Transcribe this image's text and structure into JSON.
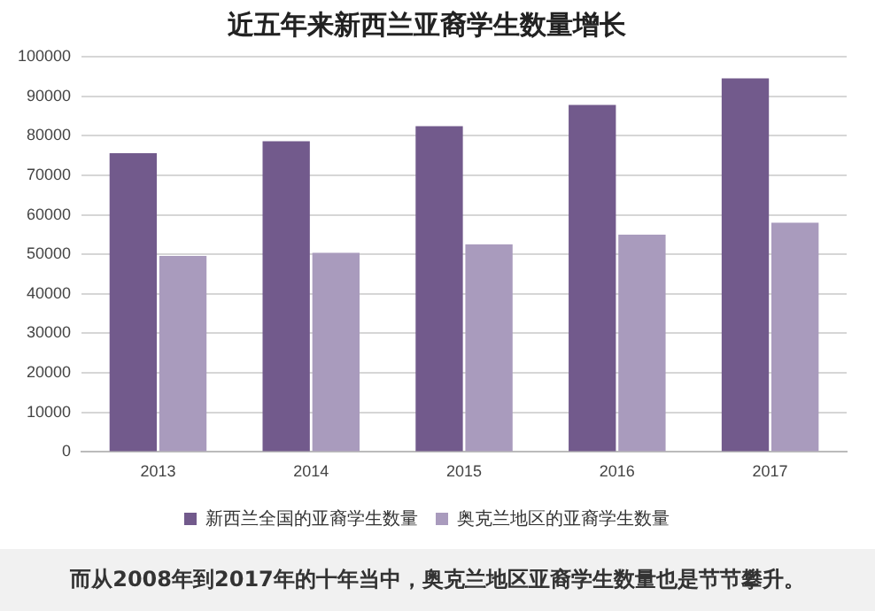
{
  "chart_data": {
    "type": "bar",
    "title": "近五年来新西兰亚裔学生数量增长",
    "categories": [
      "2013",
      "2014",
      "2015",
      "2016",
      "2017"
    ],
    "series": [
      {
        "name": "新西兰全国的亚裔学生数量",
        "color": "#725a8c",
        "values": [
          75600,
          78600,
          82400,
          87800,
          94500
        ]
      },
      {
        "name": "奥克兰地区的亚裔学生数量",
        "color": "#a99bbd",
        "values": [
          49600,
          50400,
          52500,
          55000,
          58000
        ]
      }
    ],
    "ylim": [
      0,
      100000
    ],
    "yticks": [
      0,
      10000,
      20000,
      30000,
      40000,
      50000,
      60000,
      70000,
      80000,
      90000,
      100000
    ],
    "grid": "y",
    "legend": "bottom",
    "annotations": [
      "而从2008年到2017年的十年当中，奥克兰地区亚裔学生数量也是节节攀升。"
    ]
  }
}
